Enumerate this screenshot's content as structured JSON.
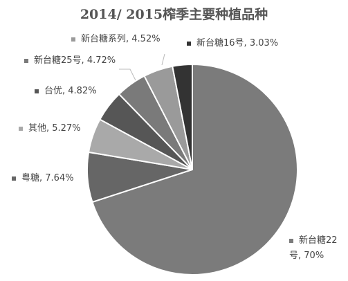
{
  "chart_data": {
    "type": "pie",
    "title": "2014/ 2015榨季主要种植品种",
    "categories": [
      "新台糖22号",
      "粤糖",
      "其他",
      "台优",
      "新台糖25号",
      "新台糖系列",
      "新台糖16号"
    ],
    "values": [
      70,
      7.64,
      5.27,
      4.82,
      4.72,
      4.52,
      3.03
    ],
    "value_labels": [
      "70%",
      "7.64%",
      "5.27%",
      "4.82%",
      "4.72%",
      "4.52%",
      "3.03%"
    ],
    "label_separator": ", ",
    "colors": [
      "#7b7b7b",
      "#666666",
      "#a9a9a9",
      "#565656",
      "#7a7a7a",
      "#9a9a9a",
      "#333333"
    ]
  }
}
